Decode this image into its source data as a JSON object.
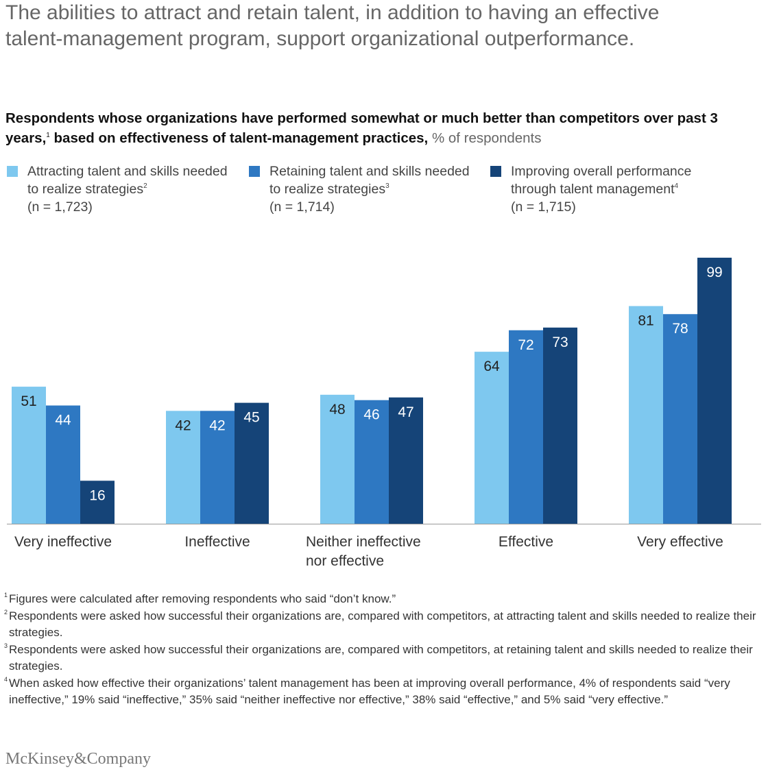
{
  "headline": "The abilities to attract and retain talent, in addition to having an effective talent-management program, support organizational outperformance.",
  "subtitle": {
    "bold_1": "Respondents whose organizations have performed somewhat or much better than competitors over past 3 years,",
    "sup": "1",
    "bold_2": " based on effectiveness of talent-management practices,",
    "unit": " % of respondents"
  },
  "legend": [
    {
      "text": "Attracting talent and skills needed to realize strategies",
      "sup": "2",
      "n": "(n = 1,723)",
      "color": "#7ec8ef"
    },
    {
      "text": "Retaining talent and skills needed to realize strategies",
      "sup": "3",
      "n": "(n = 1,714)",
      "color": "#2e78c2"
    },
    {
      "text": "Improving overall performance through talent management",
      "sup": "4",
      "n": "(n = 1,715)",
      "color": "#154478"
    }
  ],
  "chart_data": {
    "type": "bar",
    "categories": [
      "Very ineffective",
      "Ineffective",
      "Neither ineffective nor effective",
      "Effective",
      "Very effective"
    ],
    "series": [
      {
        "name": "Attracting talent and skills needed to realize strategies",
        "values": [
          51,
          42,
          48,
          64,
          81
        ],
        "color": "#7ec8ef",
        "label_color": "#222222"
      },
      {
        "name": "Retaining talent and skills needed to realize strategies",
        "values": [
          44,
          42,
          46,
          72,
          78
        ],
        "color": "#2e78c2",
        "label_color": "#ffffff"
      },
      {
        "name": "Improving overall performance through talent management",
        "values": [
          16,
          45,
          47,
          73,
          99
        ],
        "color": "#154478",
        "label_color": "#ffffff"
      }
    ],
    "ylim": [
      0,
      100
    ],
    "grid": false,
    "legend_position": "top"
  },
  "footnotes": [
    {
      "sup": "1",
      "text": "Figures were calculated after removing respondents who said “don’t know.”"
    },
    {
      "sup": "2",
      "text": "Respondents were asked how successful their organizations are, compared with competitors, at attracting talent and skills needed to realize their strategies."
    },
    {
      "sup": "3",
      "text": "Respondents were asked how successful their organizations are, compared with competitors, at retaining talent and skills needed to realize their strategies."
    },
    {
      "sup": "4",
      "text": "When asked how effective their organizations’ talent management has been at improving overall performance, 4% of respondents said “very ineffective,” 19% said “ineffective,” 35% said “neither ineffective nor effective,” 38% said “effective,” and 5% said “very effective.”"
    }
  ],
  "brand": "McKinsey&Company"
}
